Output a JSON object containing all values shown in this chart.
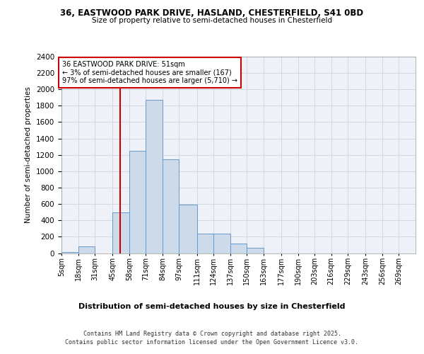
{
  "title1": "36, EASTWOOD PARK DRIVE, HASLAND, CHESTERFIELD, S41 0BD",
  "title2": "Size of property relative to semi-detached houses in Chesterfield",
  "xlabel": "Distribution of semi-detached houses by size in Chesterfield",
  "ylabel": "Number of semi-detached properties",
  "footnote1": "Contains HM Land Registry data © Crown copyright and database right 2025.",
  "footnote2": "Contains public sector information licensed under the Open Government Licence v3.0.",
  "property_size": 51,
  "property_label": "36 EASTWOOD PARK DRIVE: 51sqm",
  "smaller_pct": "3%",
  "smaller_count": 167,
  "larger_pct": "97%",
  "larger_count": "5,710",
  "bin_labels": [
    "5sqm",
    "18sqm",
    "31sqm",
    "45sqm",
    "58sqm",
    "71sqm",
    "84sqm",
    "97sqm",
    "111sqm",
    "124sqm",
    "137sqm",
    "150sqm",
    "163sqm",
    "177sqm",
    "190sqm",
    "203sqm",
    "216sqm",
    "229sqm",
    "243sqm",
    "256sqm",
    "269sqm"
  ],
  "bin_starts": [
    5,
    18,
    31,
    45,
    58,
    71,
    84,
    97,
    111,
    124,
    137,
    150,
    163,
    177,
    190,
    203,
    216,
    229,
    243,
    256,
    269
  ],
  "bar_heights": [
    10,
    80,
    0,
    500,
    1250,
    1870,
    1150,
    590,
    240,
    240,
    115,
    65,
    0,
    0,
    0,
    0,
    0,
    0,
    0,
    0,
    0
  ],
  "bar_color": "#ccdaea",
  "bar_edge_color": "#6699cc",
  "red_line_color": "#cc0000",
  "grid_color": "#d0d8e0",
  "background_color": "#eef2f8",
  "ylim": [
    0,
    2400
  ],
  "yticks": [
    0,
    200,
    400,
    600,
    800,
    1000,
    1200,
    1400,
    1600,
    1800,
    2000,
    2200,
    2400
  ],
  "annotation_box_color": "#ffffff",
  "annotation_border_color": "#cc0000"
}
